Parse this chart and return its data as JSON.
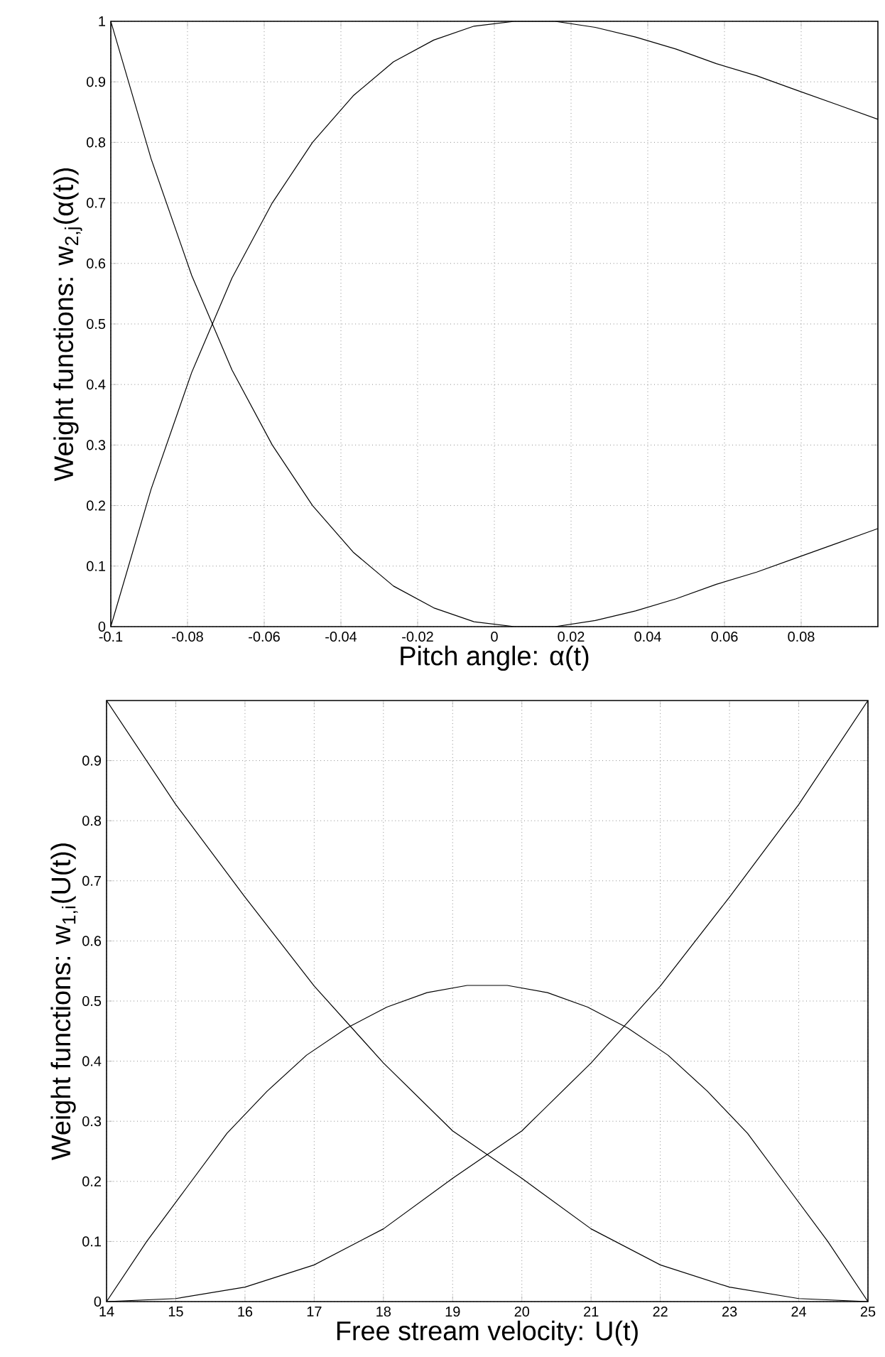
{
  "chart_data": [
    {
      "type": "line",
      "xlabel": "Pitch angle: α(t)",
      "ylabel": "Weight functions: w$_{2,j}$(α(t))",
      "x": [
        -0.1,
        -0.0895,
        -0.0789,
        -0.0684,
        -0.0579,
        -0.0474,
        -0.0368,
        -0.0263,
        -0.0158,
        -0.0053,
        0.0053,
        0.0158,
        0.0263,
        0.0368,
        0.0474,
        0.0579,
        0.0684,
        0.0789,
        0.0895,
        0.1
      ],
      "series": [
        {
          "color": "#000000",
          "values": [
            1,
            0.773,
            0.58,
            0.424,
            0.3,
            0.2,
            0.123,
            0.067,
            0.031,
            0.008,
            0,
            0,
            0.01,
            0.026,
            0.046,
            0.07,
            0.09,
            0.114,
            0.138,
            0.162
          ]
        },
        {
          "color": "#000000",
          "values": [
            0,
            0.227,
            0.42,
            0.576,
            0.7,
            0.8,
            0.877,
            0.933,
            0.969,
            0.992,
            1,
            1,
            0.99,
            0.974,
            0.954,
            0.93,
            0.91,
            0.886,
            0.862,
            0.838
          ]
        }
      ],
      "xlim": [
        -0.1,
        0.1
      ],
      "ylim": [
        0,
        1
      ],
      "xticks": [
        -0.1,
        -0.08,
        -0.06,
        -0.04,
        -0.02,
        0,
        0.02,
        0.04,
        0.06,
        0.08
      ],
      "yticks": [
        0,
        0.1,
        0.2,
        0.3,
        0.4,
        0.5,
        0.6,
        0.7,
        0.8,
        0.9,
        1
      ],
      "grid": true,
      "marker": "none",
      "line_style": "solid"
    },
    {
      "type": "line",
      "xlabel": "Free stream velocity: U(t)",
      "ylabel": "Weight functions: w$_{1,i}$(U(t))",
      "x": [
        14,
        14.58,
        15.16,
        15.74,
        16.32,
        16.89,
        17.47,
        18.05,
        18.63,
        19.21,
        19.79,
        20.37,
        20.95,
        21.53,
        22.11,
        22.68,
        23.26,
        23.84,
        24.42,
        25
      ],
      "series": [
        {
          "color": "#000000",
          "x": [
            14,
            15,
            16,
            17,
            18,
            19,
            20,
            21,
            22,
            23,
            24,
            25
          ],
          "values": [
            1,
            0.827,
            0.673,
            0.525,
            0.397,
            0.284,
            0.205,
            0.121,
            0.061,
            0.024,
            0.005,
            0
          ]
        },
        {
          "color": "#000000",
          "values": [
            0,
            0.1,
            0.19,
            0.28,
            0.35,
            0.41,
            0.455,
            0.49,
            0.514,
            0.526,
            0.526,
            0.514,
            0.49,
            0.455,
            0.41,
            0.35,
            0.28,
            0.19,
            0.1,
            0
          ]
        },
        {
          "color": "#000000",
          "x": [
            14,
            15,
            16,
            17,
            18,
            19,
            20,
            21,
            22,
            23,
            24,
            25
          ],
          "values": [
            0,
            0.005,
            0.024,
            0.061,
            0.121,
            0.205,
            0.284,
            0.397,
            0.525,
            0.673,
            0.827,
            1
          ]
        }
      ],
      "xlim": [
        14,
        25
      ],
      "ylim": [
        0,
        1
      ],
      "xticks": [
        14,
        15,
        16,
        17,
        18,
        19,
        20,
        21,
        22,
        23,
        24,
        25
      ],
      "yticks": [
        0,
        0.1,
        0.2,
        0.3,
        0.4,
        0.5,
        0.6,
        0.7,
        0.8,
        0.9
      ],
      "grid": true,
      "marker": "none",
      "line_style": "solid"
    }
  ]
}
